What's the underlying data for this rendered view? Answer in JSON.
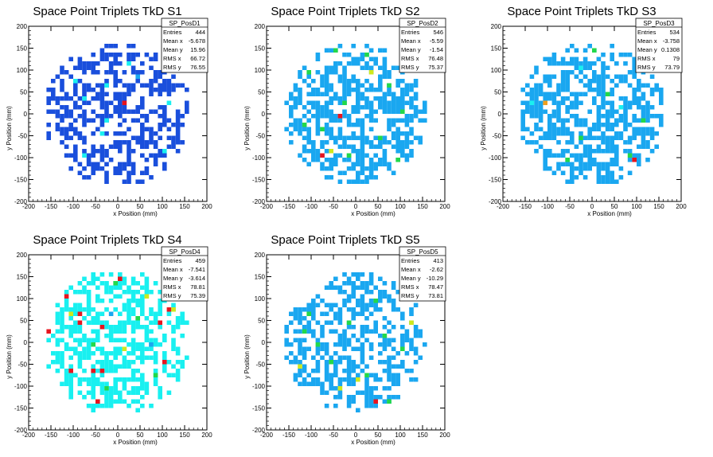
{
  "colors": {
    "blue": "#1a4fdc",
    "azure": "#1aa7f0",
    "cyan": "#19f0f0",
    "green": "#22d84a",
    "yellow": "#cfe81c",
    "orange": "#f0a020",
    "red": "#e8141e"
  },
  "chart_data": [
    {
      "type": "heatmap",
      "title": "Space Point Triplets TkD S1",
      "xlabel": "x Position (mm)",
      "ylabel": "y Position (mm)",
      "xlim": [
        -200,
        200
      ],
      "ylim": [
        -200,
        200
      ],
      "xticks": [
        -200,
        -150,
        -100,
        -50,
        0,
        50,
        100,
        150,
        200
      ],
      "yticks": [
        -200,
        -150,
        -100,
        -50,
        0,
        50,
        100,
        150,
        200
      ],
      "stats": {
        "name": "SP_PosD1",
        "rows": [
          [
            "Entries",
            "444"
          ],
          [
            "Mean x",
            "-5.678"
          ],
          [
            "Mean y",
            "15.96"
          ],
          [
            "RMS x",
            "66.72"
          ],
          [
            "RMS y",
            "76.55"
          ]
        ]
      },
      "bin_size_mm": 10,
      "dominant_color": "blue",
      "min_fill_density": 0.5,
      "seed": 11,
      "radius_mm": 165,
      "accent_cells": [
        [
          -72,
          30,
          "cyan"
        ],
        [
          -100,
          72,
          "cyan"
        ],
        [
          -30,
          62,
          "cyan"
        ],
        [
          110,
          25,
          "cyan"
        ],
        [
          -40,
          -50,
          "cyan"
        ],
        [
          -75,
          -95,
          "cyan"
        ],
        [
          102,
          -85,
          "cyan"
        ],
        [
          20,
          115,
          "cyan"
        ],
        [
          -25,
          -15,
          "cyan"
        ],
        [
          17,
          22,
          "red"
        ],
        [
          40,
          80,
          "azure"
        ]
      ]
    },
    {
      "type": "heatmap",
      "title": "Space Point Triplets TkD S2",
      "xlabel": "x Position (mm)",
      "ylabel": "y Position (mm)",
      "xlim": [
        -200,
        200
      ],
      "ylim": [
        -200,
        200
      ],
      "xticks": [
        -200,
        -150,
        -100,
        -50,
        0,
        50,
        100,
        150,
        200
      ],
      "yticks": [
        -200,
        -150,
        -100,
        -50,
        0,
        50,
        100,
        150,
        200
      ],
      "stats": {
        "name": "SP_PosD2",
        "rows": [
          [
            "Entries",
            "546"
          ],
          [
            "Mean x",
            "-5.59"
          ],
          [
            "Mean y",
            "-1.54"
          ],
          [
            "RMS x",
            "76.48"
          ],
          [
            "RMS y",
            "75.37"
          ]
        ]
      },
      "bin_size_mm": 10,
      "dominant_color": "azure",
      "min_fill_density": 0.56,
      "seed": 23,
      "radius_mm": 160,
      "accent_cells": [
        [
          -50,
          140,
          "green"
        ],
        [
          20,
          130,
          "green"
        ],
        [
          -110,
          90,
          "green"
        ],
        [
          70,
          60,
          "green"
        ],
        [
          -30,
          20,
          "green"
        ],
        [
          100,
          5,
          "green"
        ],
        [
          -80,
          -40,
          "green"
        ],
        [
          55,
          -55,
          "green"
        ],
        [
          -20,
          -100,
          "green"
        ],
        [
          90,
          -110,
          "green"
        ],
        [
          -120,
          -30,
          "green"
        ],
        [
          30,
          90,
          "yellow"
        ],
        [
          -55,
          -85,
          "yellow"
        ],
        [
          -40,
          -10,
          "red"
        ],
        [
          -80,
          -100,
          "red"
        ]
      ]
    },
    {
      "type": "heatmap",
      "title": "Space Point Triplets TkD S3",
      "xlabel": "x Position (mm)",
      "ylabel": "y Position (mm)",
      "xlim": [
        -200,
        200
      ],
      "ylim": [
        -200,
        200
      ],
      "xticks": [
        -200,
        -150,
        -100,
        -50,
        0,
        50,
        100,
        150,
        200
      ],
      "yticks": [
        -200,
        -150,
        -100,
        -50,
        0,
        50,
        100,
        150,
        200
      ],
      "stats": {
        "name": "SP_PosD3",
        "rows": [
          [
            "Entries",
            "534"
          ],
          [
            "Mean x",
            "-3.758"
          ],
          [
            "Mean y",
            "0.1308"
          ],
          [
            "RMS x",
            "79"
          ],
          [
            "RMS y",
            "73.79"
          ]
        ]
      },
      "bin_size_mm": 10,
      "dominant_color": "azure",
      "min_fill_density": 0.6,
      "seed": 37,
      "radius_mm": 165,
      "accent_cells": [
        [
          0,
          145,
          "green"
        ],
        [
          -30,
          -60,
          "green"
        ],
        [
          110,
          -15,
          "green"
        ],
        [
          -60,
          -110,
          "green"
        ],
        [
          80,
          -95,
          "green"
        ],
        [
          30,
          40,
          "green"
        ],
        [
          -140,
          20,
          "cyan"
        ],
        [
          -105,
          25,
          "orange"
        ],
        [
          60,
          15,
          "cyan"
        ],
        [
          -30,
          105,
          "cyan"
        ],
        [
          90,
          -110,
          "red"
        ]
      ]
    },
    {
      "type": "heatmap",
      "title": "Space Point Triplets TkD S4",
      "xlabel": "x Position (mm)",
      "ylabel": "y Position (mm)",
      "xlim": [
        -200,
        200
      ],
      "ylim": [
        -200,
        200
      ],
      "xticks": [
        -200,
        -150,
        -100,
        -50,
        0,
        50,
        100,
        150,
        200
      ],
      "yticks": [
        -200,
        -150,
        -100,
        -50,
        0,
        50,
        100,
        150,
        200
      ],
      "stats": {
        "name": "SP_PosD4",
        "rows": [
          [
            "Entries",
            "459"
          ],
          [
            "Mean x",
            "-7.541"
          ],
          [
            "Mean y",
            "-3.614"
          ],
          [
            "RMS x",
            "78.81"
          ],
          [
            "RMS y",
            "75.39"
          ]
        ]
      },
      "bin_size_mm": 10,
      "dominant_color": "cyan",
      "min_fill_density": 0.52,
      "seed": 51,
      "radius_mm": 165,
      "accent_cells": [
        [
          -120,
          100,
          "red"
        ],
        [
          0,
          148,
          "red"
        ],
        [
          -155,
          25,
          "red"
        ],
        [
          -85,
          42,
          "red"
        ],
        [
          -40,
          35,
          "red"
        ],
        [
          95,
          40,
          "red"
        ],
        [
          110,
          75,
          "red"
        ],
        [
          -90,
          60,
          "red"
        ],
        [
          -105,
          -70,
          "red"
        ],
        [
          -60,
          -70,
          "red"
        ],
        [
          -35,
          -70,
          "red"
        ],
        [
          -50,
          -140,
          "red"
        ],
        [
          100,
          -50,
          "red"
        ],
        [
          -10,
          130,
          "green"
        ],
        [
          40,
          50,
          "green"
        ],
        [
          -60,
          -10,
          "green"
        ],
        [
          85,
          -75,
          "green"
        ],
        [
          -30,
          -110,
          "green"
        ],
        [
          125,
          70,
          "yellow"
        ],
        [
          60,
          100,
          "yellow"
        ],
        [
          -110,
          65,
          "yellow"
        ],
        [
          10,
          -20,
          "yellow"
        ],
        [
          -20,
          60,
          "azure"
        ],
        [
          70,
          -10,
          "azure"
        ]
      ]
    },
    {
      "type": "heatmap",
      "title": "Space Point Triplets TkD S5",
      "xlabel": "x Position (mm)",
      "ylabel": "y Position (mm)",
      "xlim": [
        -200,
        200
      ],
      "ylim": [
        -200,
        200
      ],
      "xticks": [
        -200,
        -150,
        -100,
        -50,
        0,
        50,
        100,
        150,
        200
      ],
      "yticks": [
        -200,
        -150,
        -100,
        -50,
        0,
        50,
        100,
        150,
        200
      ],
      "stats": {
        "name": "SP_PosD5",
        "rows": [
          [
            "Entries",
            "413"
          ],
          [
            "Mean x",
            "-2.62"
          ],
          [
            "Mean y",
            "-10.29"
          ],
          [
            "RMS x",
            "78.47"
          ],
          [
            "RMS y",
            "73.81"
          ]
        ]
      },
      "bin_size_mm": 10,
      "dominant_color": "azure",
      "min_fill_density": 0.48,
      "seed": 67,
      "radius_mm": 160,
      "accent_cells": [
        [
          -110,
          60,
          "green"
        ],
        [
          -20,
          40,
          "green"
        ],
        [
          60,
          10,
          "green"
        ],
        [
          -60,
          -50,
          "green"
        ],
        [
          20,
          -80,
          "green"
        ],
        [
          100,
          -20,
          "green"
        ],
        [
          -90,
          -10,
          "green"
        ],
        [
          40,
          90,
          "green"
        ],
        [
          -130,
          -60,
          "yellow"
        ],
        [
          0,
          -90,
          "yellow"
        ],
        [
          120,
          40,
          "yellow"
        ],
        [
          -40,
          -110,
          "yellow"
        ],
        [
          70,
          -140,
          "green"
        ],
        [
          45,
          -140,
          "red"
        ],
        [
          -120,
          20,
          "green"
        ]
      ]
    }
  ]
}
